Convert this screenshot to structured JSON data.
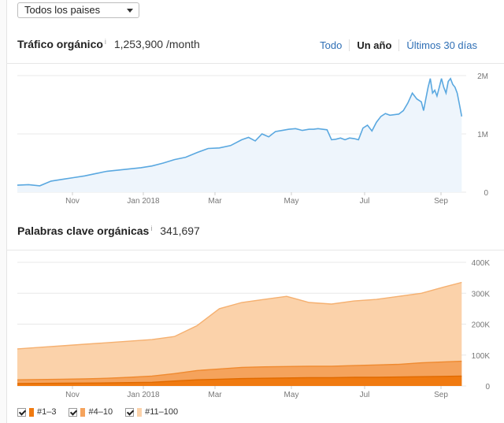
{
  "country_select": {
    "value": "Todos los paises"
  },
  "traffic": {
    "title": "Tráfico orgánico",
    "info": "i",
    "value": "1,253,900 /month",
    "ranges": [
      "Todo",
      "Un año",
      "Últimos 30 días"
    ],
    "active_range": "Un año"
  },
  "keywords": {
    "title": "Palabras clave orgánicas",
    "info": "i",
    "value": "341,697"
  },
  "legend": [
    {
      "label": "#1–3",
      "color": "#f07a10"
    },
    {
      "label": "#4–10",
      "color": "#f5a35c"
    },
    {
      "label": "#11–100",
      "color": "#fbd2aa"
    }
  ],
  "chart_data": [
    {
      "type": "area",
      "title": "Tráfico orgánico",
      "x_ticks": [
        "Nov",
        "Jan 2018",
        "Mar",
        "May",
        "Jul",
        "Sep"
      ],
      "y_ticks": [
        "2M",
        "1M",
        "0"
      ],
      "ylim": [
        0,
        2000000
      ],
      "color": "#5aa8e0",
      "fill": "#eef5fc",
      "x": [
        0,
        0.5,
        1,
        1.5,
        2,
        2.5,
        3,
        3.5,
        4,
        4.5,
        5,
        5.5,
        6,
        6.5,
        7,
        7.5,
        8,
        8.5,
        9,
        9.5,
        10,
        10.3,
        10.6,
        10.9,
        11.2,
        11.5,
        11.8,
        12.1,
        12.4,
        12.7,
        13,
        13.2,
        13.4,
        13.6,
        13.8,
        14,
        14.2,
        14.4,
        14.6,
        14.8,
        15,
        15.2,
        15.4,
        15.6,
        15.8,
        16,
        16.2,
        16.4,
        16.6,
        16.8,
        17,
        17.2,
        17.4,
        17.6,
        17.8,
        18,
        18.1,
        18.2,
        18.3,
        18.4,
        18.5,
        18.6,
        18.7,
        18.8,
        18.9,
        19,
        19.1,
        19.2,
        19.3,
        19.4,
        19.5,
        19.6,
        19.7,
        19.8
      ],
      "y": [
        120000,
        130000,
        110000,
        190000,
        220000,
        250000,
        280000,
        320000,
        360000,
        380000,
        400000,
        420000,
        450000,
        500000,
        560000,
        600000,
        680000,
        750000,
        760000,
        800000,
        900000,
        940000,
        880000,
        1000000,
        950000,
        1040000,
        1060000,
        1080000,
        1090000,
        1060000,
        1080000,
        1080000,
        1090000,
        1080000,
        1070000,
        900000,
        910000,
        930000,
        900000,
        930000,
        920000,
        900000,
        1100000,
        1150000,
        1050000,
        1200000,
        1300000,
        1350000,
        1320000,
        1330000,
        1340000,
        1400000,
        1530000,
        1700000,
        1600000,
        1550000,
        1400000,
        1600000,
        1800000,
        1950000,
        1700000,
        1750000,
        1650000,
        1800000,
        1950000,
        1800000,
        1700000,
        1900000,
        1950000,
        1850000,
        1800000,
        1700000,
        1500000,
        1300000
      ],
      "series_total_label": "1,253,900 /month"
    },
    {
      "type": "area",
      "title": "Palabras clave orgánicas",
      "x_ticks": [
        "Nov",
        "Jan 2018",
        "Mar",
        "May",
        "Jul",
        "Sep"
      ],
      "y_ticks": [
        "400K",
        "300K",
        "200K",
        "100K",
        "0"
      ],
      "ylim": [
        0,
        400000
      ],
      "x": [
        0,
        1,
        2,
        3,
        4,
        5,
        6,
        7,
        8,
        9,
        10,
        11,
        12,
        13,
        14,
        15,
        16,
        17,
        18,
        19,
        19.8
      ],
      "series": [
        {
          "name": "#11–100",
          "values": [
            120000,
            125000,
            130000,
            135000,
            140000,
            145000,
            150000,
            160000,
            195000,
            250000,
            270000,
            280000,
            290000,
            270000,
            265000,
            275000,
            280000,
            290000,
            300000,
            320000,
            335000
          ],
          "color": "#fbd2aa",
          "stroke": "#f5b070"
        },
        {
          "name": "#4–10",
          "values": [
            20000,
            21000,
            22000,
            23000,
            25000,
            28000,
            32000,
            40000,
            50000,
            55000,
            60000,
            62000,
            63000,
            64000,
            64000,
            66000,
            68000,
            70000,
            75000,
            78000,
            80000
          ],
          "color": "#f5a35c",
          "stroke": "#ef8a30"
        },
        {
          "name": "#1–3",
          "values": [
            8000,
            8500,
            9000,
            9500,
            10000,
            11000,
            12000,
            16000,
            20000,
            22000,
            24000,
            25000,
            26000,
            27000,
            27000,
            28000,
            28000,
            29000,
            30000,
            31000,
            32000
          ],
          "color": "#f07a10",
          "stroke": "#e06a00"
        }
      ]
    }
  ]
}
